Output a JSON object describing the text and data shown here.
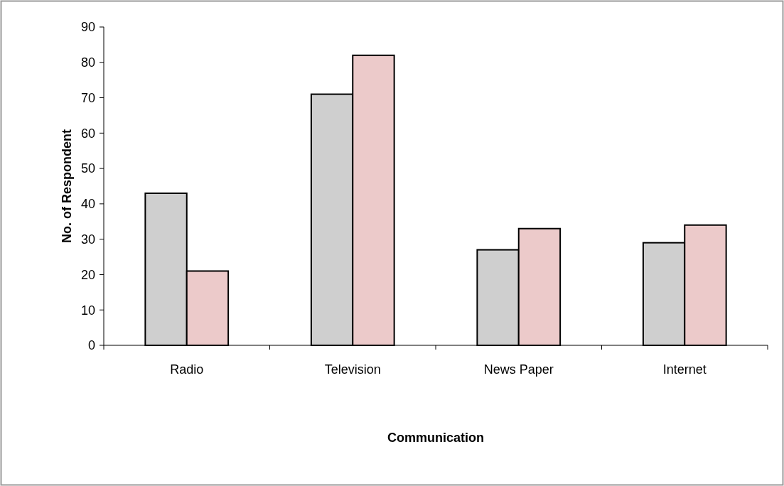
{
  "chart_data": {
    "type": "bar",
    "xlabel": "Communication",
    "ylabel": "No. of Respondent",
    "categories": [
      "Radio",
      "Television",
      "News Paper",
      "Internet"
    ],
    "series": [
      {
        "color": "#cfcfcf",
        "values": [
          43,
          71,
          27,
          29
        ]
      },
      {
        "color": "#eccaca",
        "values": [
          21,
          82,
          33,
          34
        ]
      }
    ],
    "ylim": [
      0,
      90
    ],
    "yticks": [
      0,
      10,
      20,
      30,
      40,
      50,
      60,
      70,
      80,
      90
    ],
    "grid": false
  }
}
